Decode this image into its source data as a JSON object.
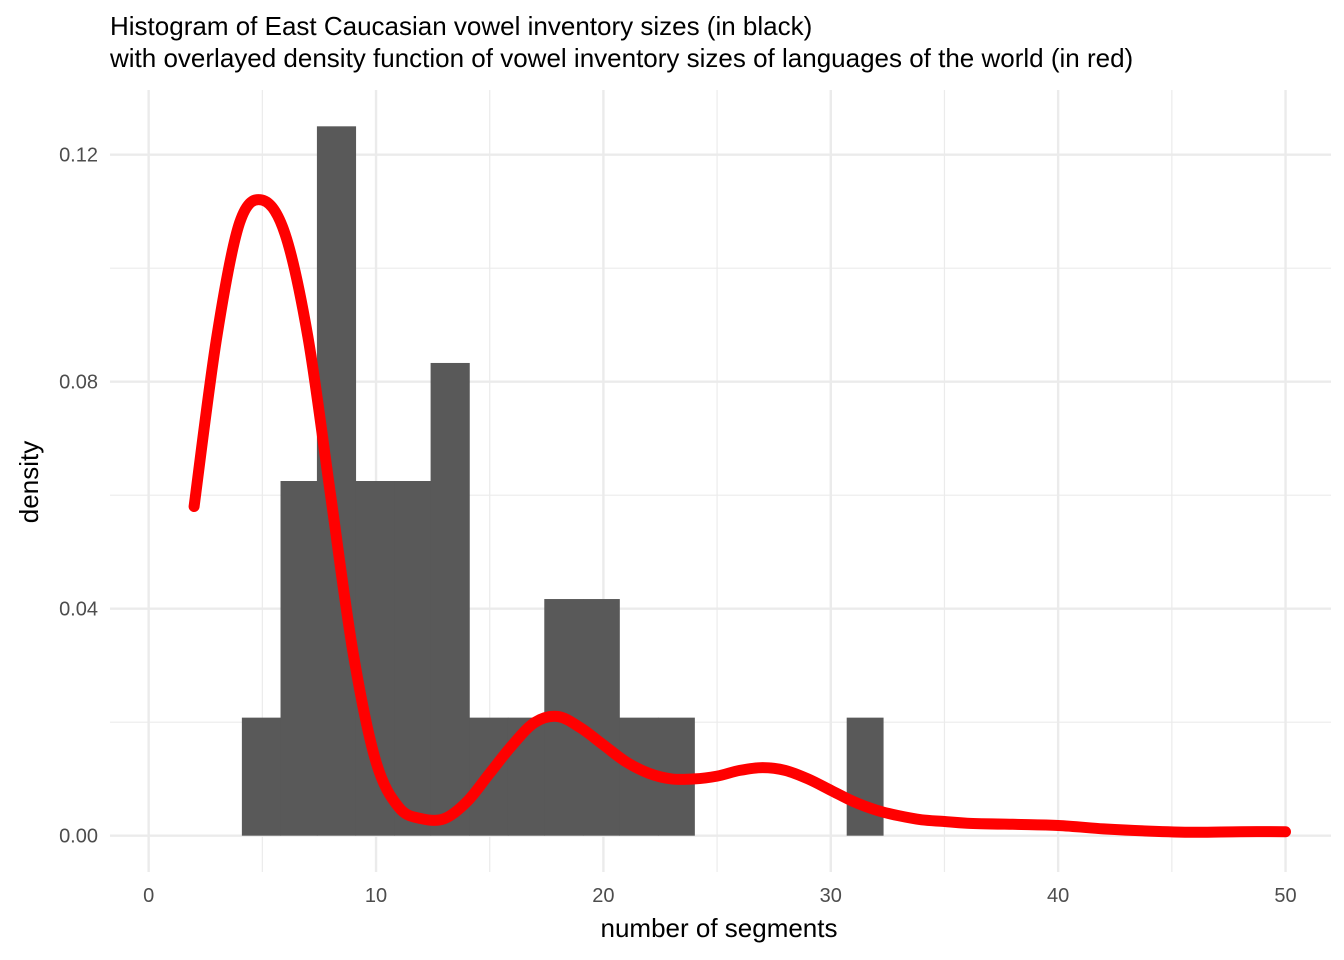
{
  "chart_data": {
    "type": "bar",
    "title_lines": [
      "Histogram of East Caucasian vowel inventory sizes (in black)",
      "with overlayed density function of vowel inventory sizes of languages of the world (in red)"
    ],
    "xlabel": "number of segments",
    "ylabel": "density",
    "xlim": [
      -1.7,
      52.0
    ],
    "ylim": [
      -0.0064,
      0.1314
    ],
    "x_ticks": [
      0,
      10,
      20,
      30,
      40,
      50
    ],
    "x_tick_labels": [
      "0",
      "10",
      "20",
      "30",
      "40",
      "50"
    ],
    "y_ticks": [
      0.0,
      0.04,
      0.08,
      0.12
    ],
    "y_tick_labels": [
      "0.00",
      "0.04",
      "0.08",
      "0.12"
    ],
    "grid": true,
    "histogram": {
      "name": "East Caucasian vowel inventory sizes",
      "color": "#595959",
      "bins": [
        {
          "x0": 4.1,
          "x1": 5.8,
          "density": 0.0208
        },
        {
          "x0": 5.8,
          "x1": 7.4,
          "density": 0.0625
        },
        {
          "x0": 7.4,
          "x1": 9.1,
          "density": 0.125
        },
        {
          "x0": 9.1,
          "x1": 10.8,
          "density": 0.0625
        },
        {
          "x0": 10.8,
          "x1": 12.4,
          "density": 0.0625
        },
        {
          "x0": 12.4,
          "x1": 14.1,
          "density": 0.0833
        },
        {
          "x0": 14.1,
          "x1": 15.8,
          "density": 0.0208
        },
        {
          "x0": 15.8,
          "x1": 17.4,
          "density": 0.0208
        },
        {
          "x0": 17.4,
          "x1": 19.1,
          "density": 0.0417
        },
        {
          "x0": 19.1,
          "x1": 20.7,
          "density": 0.0417
        },
        {
          "x0": 20.7,
          "x1": 22.4,
          "density": 0.0208
        },
        {
          "x0": 22.4,
          "x1": 24.0,
          "density": 0.0208
        },
        {
          "x0": 30.7,
          "x1": 32.3,
          "density": 0.0208
        }
      ]
    },
    "density_curve": {
      "name": "vowel inventory sizes of languages of the world",
      "color": "#ff0000",
      "x": [
        2,
        3,
        4,
        5,
        6,
        7,
        8,
        9,
        10,
        11,
        12,
        13,
        14,
        15,
        16,
        17,
        18,
        19,
        20,
        21,
        22,
        23,
        24,
        25,
        26,
        27,
        28,
        29,
        30,
        31,
        32,
        33,
        34,
        35,
        36,
        38,
        40,
        42,
        44,
        46,
        48,
        50
      ],
      "y": [
        0.058,
        0.088,
        0.108,
        0.112,
        0.106,
        0.088,
        0.06,
        0.032,
        0.013,
        0.005,
        0.003,
        0.003,
        0.006,
        0.011,
        0.016,
        0.02,
        0.021,
        0.019,
        0.016,
        0.013,
        0.011,
        0.01,
        0.01,
        0.0105,
        0.0115,
        0.012,
        0.0115,
        0.01,
        0.008,
        0.006,
        0.0045,
        0.0035,
        0.0028,
        0.0025,
        0.0022,
        0.002,
        0.0018,
        0.0012,
        0.0008,
        0.0006,
        0.0007,
        0.0007
      ]
    }
  }
}
